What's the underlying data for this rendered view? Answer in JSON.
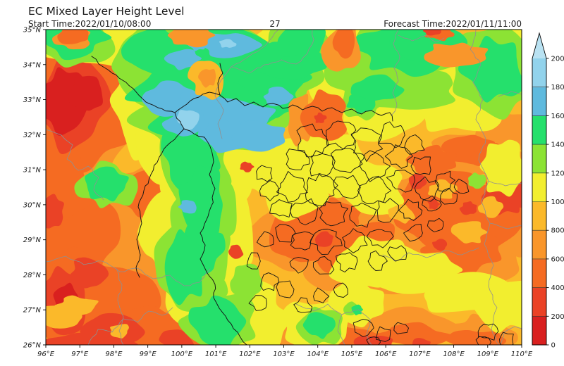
{
  "figure": {
    "title": "EC Mixed Layer Height Level",
    "subtitle_left": "Start Time:2022/01/10/08:00",
    "subtitle_center": "27",
    "subtitle_right": "Forecast Time:2022/01/11/11:00"
  },
  "chart_data": {
    "type": "filled_contour_map",
    "title": "EC Mixed Layer Height Level",
    "start_time": "2022/01/10/08:00",
    "forecast_time": "2022/01/11/11:00",
    "forecast_hour": "27",
    "x_axis": {
      "range": [
        96,
        110
      ],
      "ticks": [
        96,
        97,
        98,
        99,
        100,
        101,
        102,
        103,
        104,
        105,
        106,
        107,
        108,
        109,
        110
      ],
      "tick_labels": [
        "96°E",
        "97°E",
        "98°E",
        "99°E",
        "100°E",
        "101°E",
        "102°E",
        "103°E",
        "104°E",
        "105°E",
        "106°E",
        "107°E",
        "108°E",
        "109°E",
        "110°E"
      ]
    },
    "y_axis": {
      "range": [
        26,
        35
      ],
      "ticks": [
        26,
        27,
        28,
        29,
        30,
        31,
        32,
        33,
        34,
        35
      ],
      "tick_labels": [
        "26°N",
        "27°N",
        "28°N",
        "29°N",
        "30°N",
        "31°N",
        "32°N",
        "33°N",
        "34°N",
        "35°N"
      ]
    },
    "colorbar": {
      "levels": [
        0,
        200,
        400,
        600,
        800,
        1000,
        1200,
        1400,
        1600,
        1800,
        2000
      ],
      "tick_labels": [
        "0",
        "200",
        "400",
        "600",
        "800",
        "1000",
        "1200",
        "1400",
        "1600",
        "1800",
        "2000"
      ],
      "colors": [
        "#d9201f",
        "#ea4226",
        "#f56b22",
        "#f9962b",
        "#fbb92a",
        "#f2ee2f",
        "#8ce334",
        "#25e06c",
        "#5fbade",
        "#92d3ec"
      ],
      "extend": "max",
      "extend_color": "#b9e2f2",
      "position": "right"
    },
    "grid": false,
    "boundary_line_colors": {
      "inner_counties": "#141414",
      "outer_provinces": "#909090"
    },
    "field_samples": [
      {
        "lon": 97.0,
        "lat": 33.0,
        "value_range": "0-200"
      },
      {
        "lon": 96.5,
        "lat": 27.5,
        "value_range": "200-400"
      },
      {
        "lon": 101.0,
        "lat": 33.2,
        "value_range": "1600-1800"
      },
      {
        "lon": 100.7,
        "lat": 33.6,
        "value_range": "600-800"
      },
      {
        "lon": 99.5,
        "lat": 34.6,
        "value_range": "1400-1600"
      },
      {
        "lon": 106.5,
        "lat": 34.5,
        "value_range": "1400-1600"
      },
      {
        "lon": 104.0,
        "lat": 30.0,
        "value_range": "400-600"
      },
      {
        "lon": 107.3,
        "lat": 30.2,
        "value_range": "200-400"
      },
      {
        "lon": 109.7,
        "lat": 30.0,
        "value_range": "200-400"
      },
      {
        "lon": 104.5,
        "lat": 31.5,
        "value_range": "1000-1200"
      },
      {
        "lon": 107.0,
        "lat": 27.8,
        "value_range": "1000-1200"
      },
      {
        "lon": 100.8,
        "lat": 26.5,
        "value_range": "1400-1600"
      },
      {
        "lon": 103.8,
        "lat": 32.5,
        "value_range": "400-600"
      },
      {
        "lon": 100.2,
        "lat": 30.0,
        "value_range": "1600-1800"
      }
    ]
  }
}
